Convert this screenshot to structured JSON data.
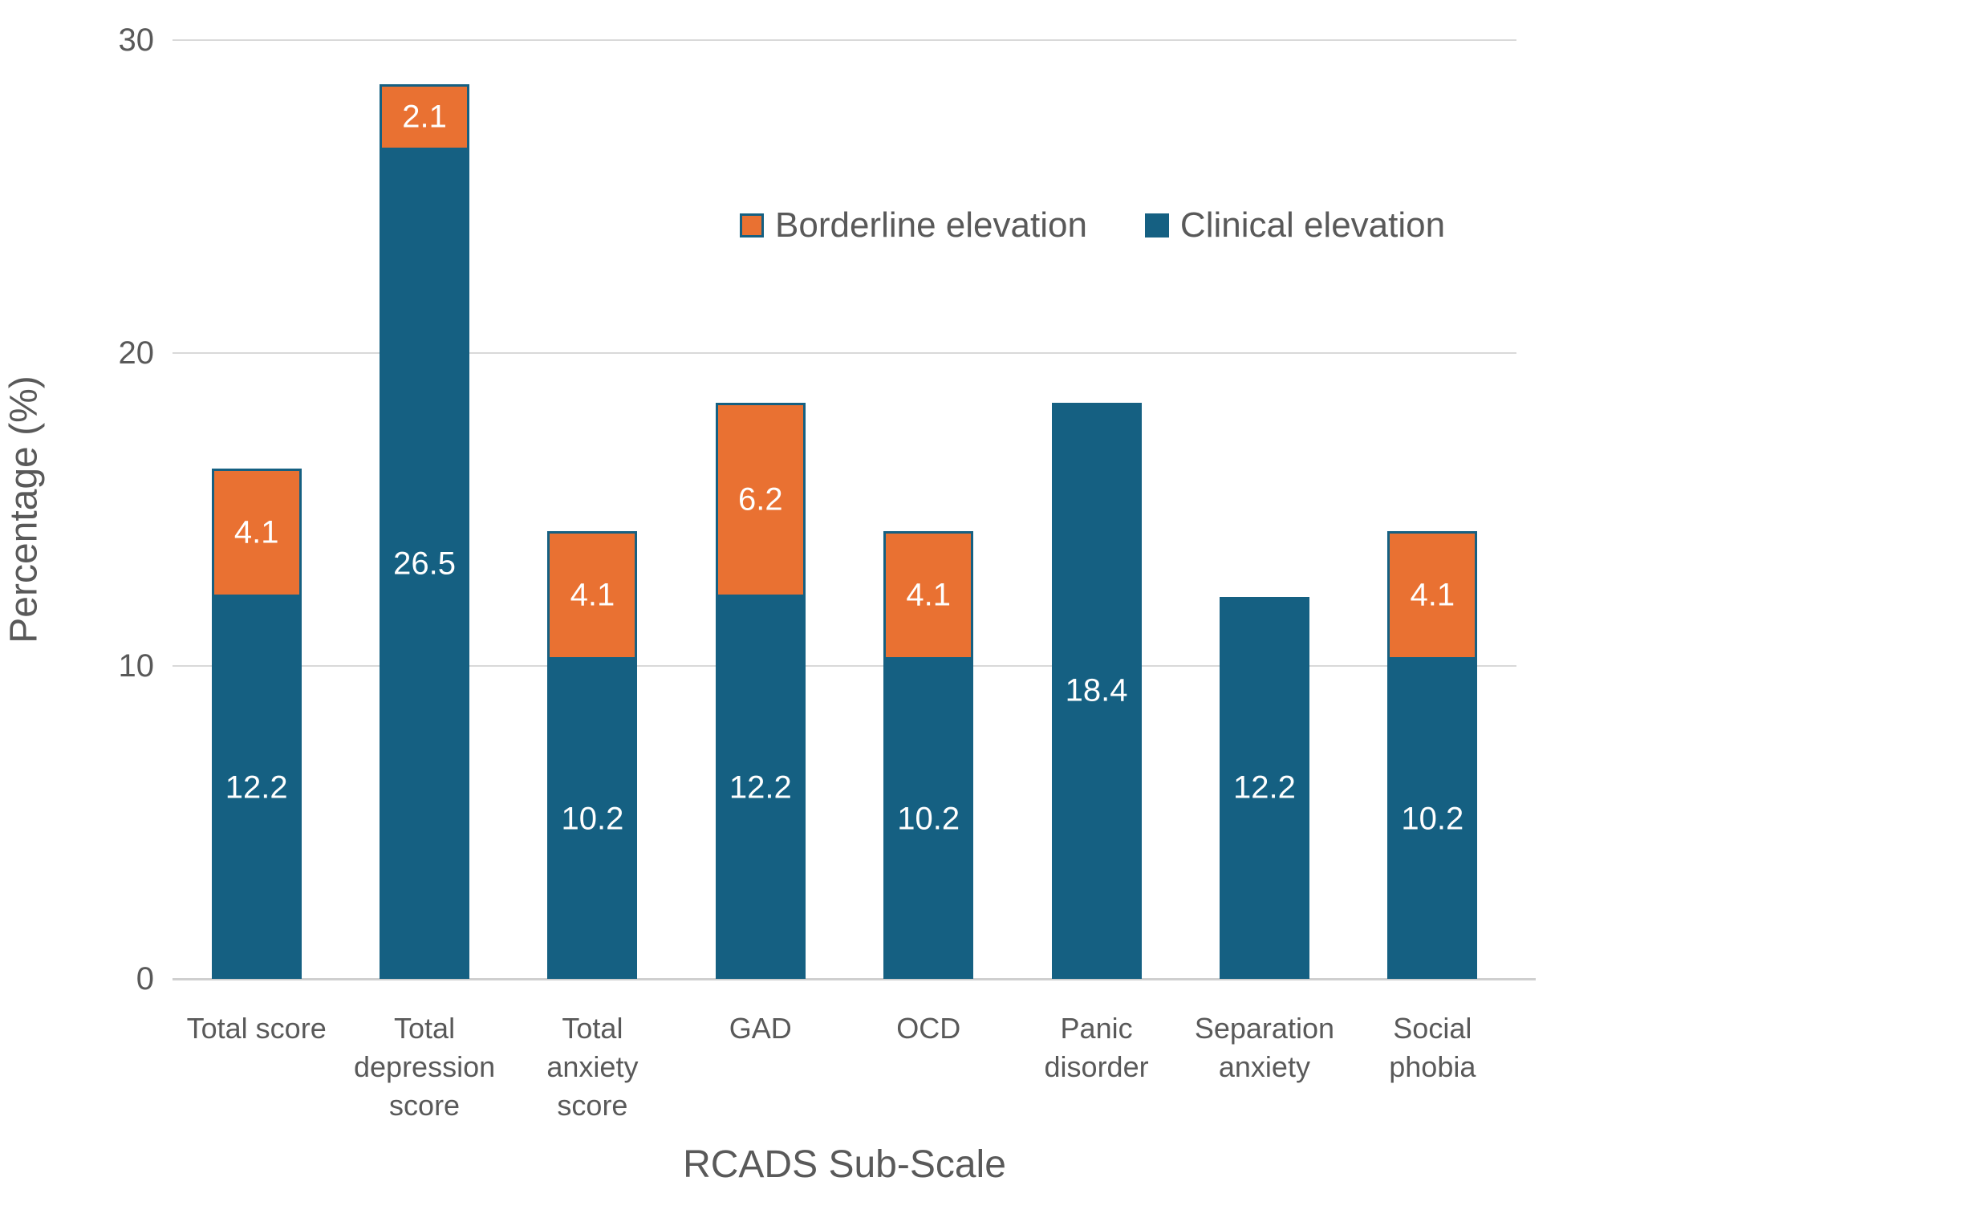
{
  "chart_data": {
    "type": "bar",
    "stacked": true,
    "xlabel": "RCADS Sub-Scale",
    "ylabel": "Percentage (%)",
    "ylim": [
      0,
      30
    ],
    "yticks": [
      0,
      10,
      20,
      30
    ],
    "grid": "horizontal-only",
    "legend_position": "inside-top-right",
    "categories": [
      "Total score",
      "Total depression score",
      "Total anxiety score",
      "GAD",
      "OCD",
      "Panic disorder",
      "Separation anxiety",
      "Social phobia"
    ],
    "category_lines": [
      [
        "Total score"
      ],
      [
        "Total",
        "depression",
        "score"
      ],
      [
        "Total",
        "anxiety",
        "score"
      ],
      [
        "GAD"
      ],
      [
        "OCD"
      ],
      [
        "Panic",
        "disorder"
      ],
      [
        "Separation",
        "anxiety"
      ],
      [
        "Social",
        "phobia"
      ]
    ],
    "series": [
      {
        "name": "Clinical elevation",
        "color": "#156082",
        "values": [
          12.2,
          26.5,
          10.2,
          12.2,
          10.2,
          18.4,
          12.2,
          10.2
        ],
        "data_labels": [
          "12.2",
          "26.5",
          "10.2",
          "12.2",
          "10.2",
          "18.4",
          "12.2",
          "10.2"
        ]
      },
      {
        "name": "Borderline elevation",
        "color": "#e97132",
        "border_color": "#156082",
        "values": [
          4.1,
          2.1,
          4.1,
          6.2,
          4.1,
          null,
          null,
          4.1
        ],
        "data_labels": [
          "4.1",
          "2.1",
          "4.1",
          "6.2",
          "4.1",
          null,
          null,
          "4.1"
        ]
      }
    ],
    "legend_order": [
      "Borderline elevation",
      "Clinical elevation"
    ],
    "data_label_color": "#ffffff",
    "gridline_color": "#d9d9d9",
    "axis_text_color": "#595959"
  }
}
